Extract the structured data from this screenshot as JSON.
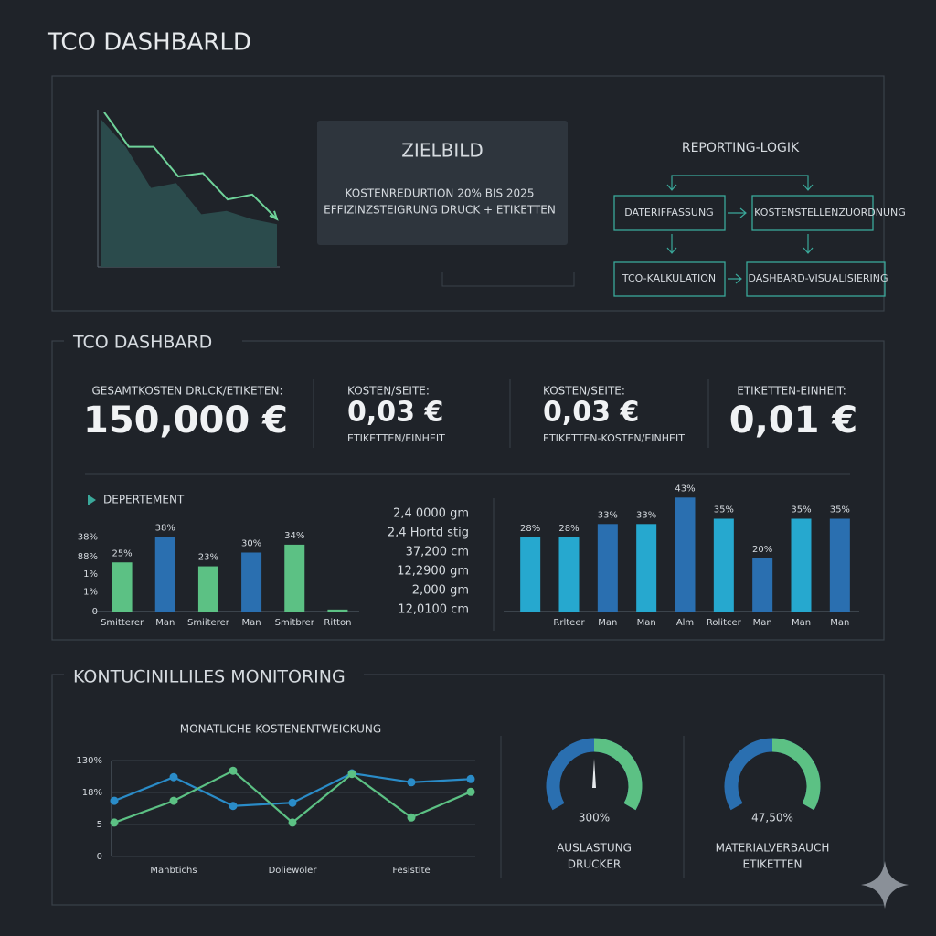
{
  "header": {
    "title": "TCO DASHBARLD"
  },
  "overview": {
    "trend": {
      "type": "area",
      "ylim": [
        0,
        100
      ],
      "line": [
        94,
        73,
        73,
        55,
        57,
        41,
        44,
        29
      ],
      "area": [
        90,
        73,
        48,
        51,
        32,
        34,
        29,
        26
      ]
    },
    "zielbild": {
      "title": "ZIELBILD",
      "lines": [
        "KOSTENREDURTION 20% BIS 2025",
        "EFFIZINZSTEIGRUNG DRUCK + ETIKETTEN"
      ]
    },
    "flow": {
      "title": "REPORTING-LOGIK",
      "nodes": [
        {
          "label": "DATERIFFASSUNG"
        },
        {
          "label": "KOSTENSTELLENZUORDNUNG"
        },
        {
          "label": "TCO-KALKULATION"
        },
        {
          "label": "DASHBARD-VISUALISIERING"
        }
      ]
    }
  },
  "dashboard": {
    "title": "TCO DASHBARD",
    "kpis": [
      {
        "label": "GESAMTKOSTEN DRLCK/ETIKETEN:",
        "value": "150,000 €"
      },
      {
        "label": "KOSTEN/SEITE:",
        "value": "0,03 €",
        "sub": "ETIKETTEN/EINHEIT"
      },
      {
        "label": "KOSTEN/SEITE:",
        "value": "0,03 €",
        "sub": "ETIKETTEN-KOSTEN/EINHEIT"
      },
      {
        "label": "ETIKETTEN-EINHEIT:",
        "value": "0,01 €"
      }
    ],
    "department": {
      "type": "bar",
      "title": "DEPERTEMENT",
      "categories": [
        "Smitterer",
        "Man",
        "Smiiterer",
        "Man",
        "Smitbrer",
        "Ritton"
      ],
      "values": [
        25,
        38,
        23,
        30,
        34,
        1
      ],
      "value_labels": [
        "25%",
        "38%",
        "23%",
        "30%",
        "34%",
        null
      ],
      "colors": [
        "#5cc184",
        "#2a6fb0",
        "#5cc184",
        "#2a6fb0",
        "#5cc184",
        "#5cc184"
      ],
      "ylim": [
        0,
        40
      ],
      "yticks": [
        0,
        {
          "value": 10,
          "label": "1%"
        },
        {
          "value": 19,
          "label": "1%"
        },
        {
          "value": 28,
          "label": "88%"
        },
        {
          "value": 38,
          "label": "38%"
        }
      ]
    },
    "list": [
      "2,4 0000 gm",
      "2,4 Hortd stig",
      "37,200 cm",
      "12,2900 gm",
      "2,000 gm",
      "12,0100 cm"
    ],
    "cost_bars": {
      "type": "bar",
      "categories": [
        null,
        "Rrlteer",
        "Man",
        "Man",
        "Alm",
        "Rolitcer",
        "Man",
        "Man",
        "Man"
      ],
      "values": [
        28,
        28,
        33,
        33,
        43,
        35,
        20,
        35,
        35
      ],
      "value_labels": [
        "28%",
        "28%",
        "33%",
        "33%",
        "43%",
        "35%",
        "20%",
        "35%",
        "35%"
      ],
      "colors": [
        "#26a8cf",
        "#26a8cf",
        "#2a6fb0",
        "#26a8cf",
        "#2a6fb0",
        "#26a8cf",
        "#2a6fb0",
        "#26a8cf",
        "#2a6fb0"
      ],
      "ylim": [
        0,
        40
      ]
    }
  },
  "monitoring": {
    "title": "KONTUCINILLILES MONITORING",
    "trend": {
      "type": "line",
      "title": "MONATLICHE KOSTENENTWEICKUNG",
      "categories": [
        null,
        "Manbtichs",
        null,
        "Doliewoler",
        null,
        "Fesistite",
        null
      ],
      "series": [
        {
          "color": "#2a8cc8",
          "values": [
            8.7,
            12.4,
            7.9,
            8.4,
            13,
            11.6,
            12.1
          ]
        },
        {
          "color": "#5cc184",
          "values": [
            5.3,
            8.7,
            13.4,
            5.3,
            12.9,
            6.1,
            10.1
          ]
        }
      ],
      "ylim": [
        0,
        15
      ],
      "yticks": [
        0,
        5,
        {
          "value": 10,
          "label": "18%"
        },
        {
          "value": 15,
          "label": "130%"
        }
      ]
    },
    "gauges": [
      {
        "value": 300,
        "value_label": "300%",
        "caption": [
          "AUSLASTUNG",
          "DRUCKER"
        ]
      },
      {
        "value": 47.5,
        "value_label": "47,50%",
        "caption": [
          "MATERIALVERBAUCH",
          "ETIKETTEN"
        ]
      }
    ]
  }
}
